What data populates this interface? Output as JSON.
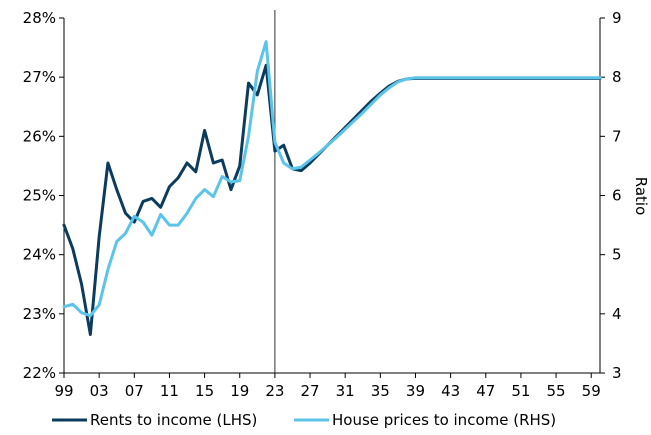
{
  "chart_data": {
    "type": "line",
    "x": [
      "99",
      "00",
      "01",
      "02",
      "03",
      "04",
      "05",
      "06",
      "07",
      "08",
      "09",
      "10",
      "11",
      "12",
      "13",
      "14",
      "15",
      "16",
      "17",
      "18",
      "19",
      "20",
      "21",
      "22",
      "23",
      "24",
      "25",
      "26",
      "27",
      "28",
      "29",
      "30",
      "31",
      "32",
      "33",
      "34",
      "35",
      "36",
      "37",
      "38",
      "39",
      "40",
      "41",
      "42",
      "43",
      "44",
      "45",
      "46",
      "47",
      "48",
      "49",
      "50",
      "51",
      "52",
      "53",
      "54",
      "55",
      "56",
      "57",
      "58",
      "59",
      "60"
    ],
    "x_tick_labels": [
      "99",
      "03",
      "07",
      "11",
      "15",
      "19",
      "23",
      "27",
      "31",
      "35",
      "39",
      "43",
      "47",
      "51",
      "55",
      "59"
    ],
    "series": [
      {
        "name": "Rents to income (LHS)",
        "axis": "left",
        "color": "#0b3c5d",
        "values": [
          24.5,
          24.1,
          23.5,
          22.65,
          24.3,
          25.55,
          25.1,
          24.7,
          24.55,
          24.9,
          24.95,
          24.8,
          25.15,
          25.3,
          25.55,
          25.4,
          26.1,
          25.55,
          25.6,
          25.1,
          25.5,
          26.9,
          26.7,
          27.2,
          25.75,
          25.85,
          25.45,
          25.42,
          25.55,
          25.7,
          25.85,
          26.0,
          26.15,
          26.3,
          26.45,
          26.6,
          26.73,
          26.85,
          26.93,
          26.97,
          26.98,
          26.98,
          26.98,
          26.98,
          26.98,
          26.98,
          26.98,
          26.98,
          26.98,
          26.98,
          26.98,
          26.98,
          26.98,
          26.98,
          26.98,
          26.98,
          26.98,
          26.98,
          26.98,
          26.98,
          26.98,
          26.98
        ]
      },
      {
        "name": "House prices to income (RHS)",
        "axis": "right",
        "color": "#5bc4e8",
        "values": [
          4.12,
          4.16,
          4.02,
          3.97,
          4.15,
          4.75,
          5.22,
          5.36,
          5.65,
          5.55,
          5.33,
          5.68,
          5.5,
          5.5,
          5.7,
          5.95,
          6.1,
          5.98,
          6.32,
          6.23,
          6.25,
          7.0,
          8.1,
          8.6,
          6.9,
          6.55,
          6.45,
          6.48,
          6.6,
          6.72,
          6.85,
          6.98,
          7.12,
          7.26,
          7.4,
          7.55,
          7.7,
          7.82,
          7.92,
          7.97,
          7.99,
          7.99,
          7.99,
          7.99,
          7.99,
          7.99,
          7.99,
          7.99,
          7.99,
          7.99,
          7.99,
          7.99,
          7.99,
          7.99,
          7.99,
          7.99,
          7.99,
          7.99,
          7.99,
          7.99,
          7.99,
          7.99
        ]
      }
    ],
    "left_axis": {
      "ylim": [
        22,
        28
      ],
      "ticks": [
        "22%",
        "23%",
        "24%",
        "25%",
        "26%",
        "27%",
        "28%"
      ]
    },
    "right_axis": {
      "ylim": [
        3,
        9
      ],
      "ticks": [
        "3",
        "4",
        "5",
        "6",
        "7",
        "8",
        "9"
      ],
      "label": "Ratio"
    },
    "vertical_marker_at": "23",
    "grid": false,
    "legend_position": "bottom"
  }
}
